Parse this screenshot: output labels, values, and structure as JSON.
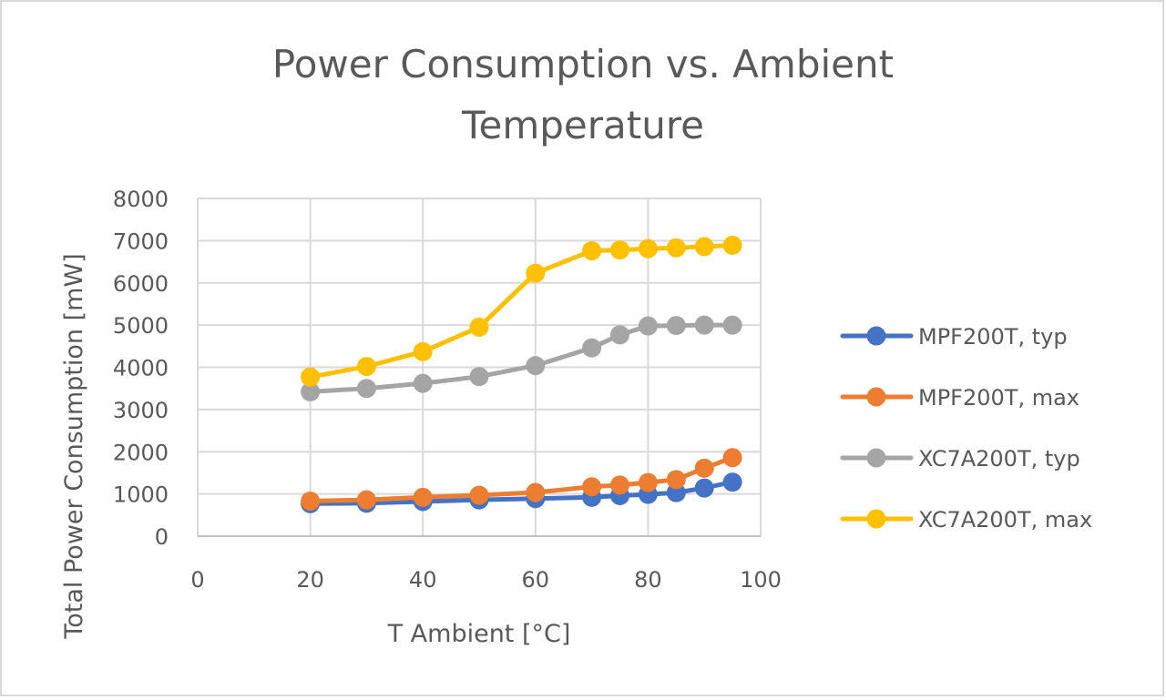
{
  "chart_data": {
    "type": "line",
    "title": "Power Consumption vs. Ambient Temperature",
    "title_lines": [
      "Power Consumption vs. Ambient",
      "Temperature"
    ],
    "xlabel": "T Ambient [°C]",
    "ylabel": "Total Power Consumption [mW]",
    "xlim": [
      0,
      100
    ],
    "ylim": [
      0,
      8000
    ],
    "x_ticks": [
      0,
      20,
      40,
      60,
      80,
      100
    ],
    "y_ticks": [
      0,
      1000,
      2000,
      3000,
      4000,
      5000,
      6000,
      7000,
      8000
    ],
    "grid": true,
    "legend_position": "right",
    "marker": "circle",
    "x": [
      20,
      30,
      40,
      50,
      60,
      70,
      75,
      80,
      85,
      90,
      95
    ],
    "series": [
      {
        "name": "MPF200T, typ",
        "color": "#4472c4",
        "values": [
          770,
          780,
          820,
          860,
          890,
          920,
          960,
          990,
          1030,
          1140,
          1280
        ]
      },
      {
        "name": "MPF200T, max",
        "color": "#ed7d31",
        "values": [
          830,
          860,
          920,
          970,
          1035,
          1170,
          1210,
          1270,
          1340,
          1610,
          1860
        ]
      },
      {
        "name": "XC7A200T, typ",
        "color": "#a5a5a5",
        "values": [
          3420,
          3500,
          3620,
          3780,
          4040,
          4460,
          4770,
          4980,
          4990,
          5000,
          5000
        ]
      },
      {
        "name": "XC7A200T, max",
        "color": "#ffc000",
        "values": [
          3770,
          4020,
          4370,
          4950,
          6230,
          6760,
          6780,
          6810,
          6830,
          6860,
          6890
        ]
      }
    ]
  }
}
